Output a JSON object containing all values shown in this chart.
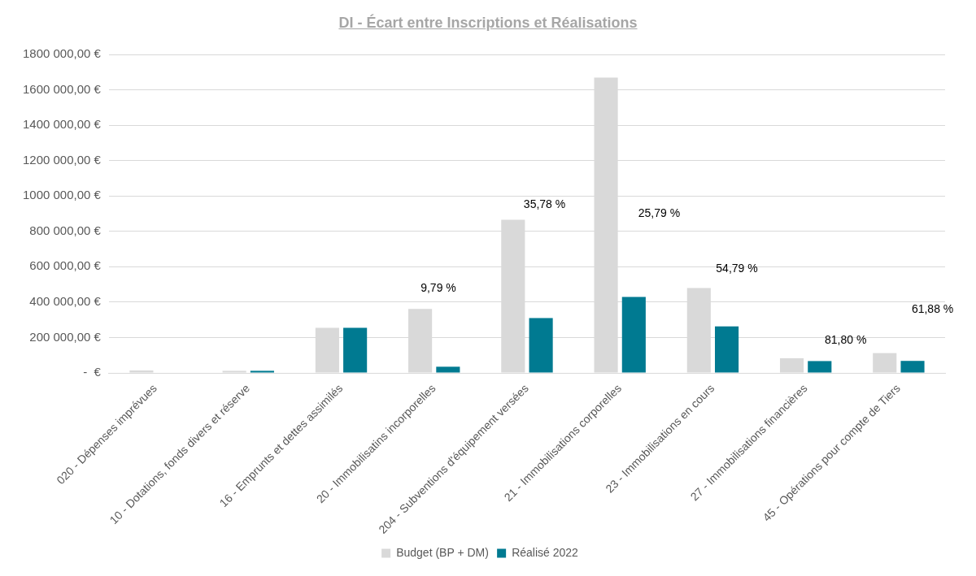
{
  "chart_data": {
    "type": "bar",
    "title": "DI - Écart entre Inscriptions et Réalisations",
    "categories": [
      "020 - Dépenses imprévues",
      "10 - Dotations, fonds divers et réserve",
      "16 - Emprunts et dettes assimilés",
      "20 - Immobilisatins incorporelles",
      "204 - Subventions d'équipement versées",
      "21 - Immobilisations corporelles",
      "23 - Immobilisations en cours",
      "27 - Immobilisations financières",
      "45 - Opérations pour compte de Tiers"
    ],
    "series": [
      {
        "name": "Budget (BP + DM)",
        "color": "#d9d9d9",
        "values": [
          14000,
          12000,
          255000,
          362000,
          866000,
          1669000,
          480000,
          83000,
          112000
        ]
      },
      {
        "name": "Réalisé 2022",
        "color": "#007a91",
        "values": [
          0,
          12000,
          255000,
          35000,
          310000,
          430000,
          263000,
          67000,
          68000
        ]
      }
    ],
    "ylim": [
      0,
      1800000
    ],
    "yticks": [
      {
        "value": 0,
        "label": "-  €"
      },
      {
        "value": 200000,
        "label": "200 000,00 €"
      },
      {
        "value": 400000,
        "label": "400 000,00 €"
      },
      {
        "value": 600000,
        "label": "600 000,00 €"
      },
      {
        "value": 800000,
        "label": "800 000,00 €"
      },
      {
        "value": 1000000,
        "label": "1000 000,00 €"
      },
      {
        "value": 1200000,
        "label": "1200 000,00 €"
      },
      {
        "value": 1400000,
        "label": "1400 000,00 €"
      },
      {
        "value": 1600000,
        "label": "1600 000,00 €"
      },
      {
        "value": 1800000,
        "label": "1800 000,00 €"
      }
    ],
    "grid": "y",
    "legend": "bottom",
    "annotations": [
      "9,79 %",
      "35,78 %",
      "25,79 %",
      "54,79 %",
      "81,80 %",
      "61,88 %"
    ]
  }
}
